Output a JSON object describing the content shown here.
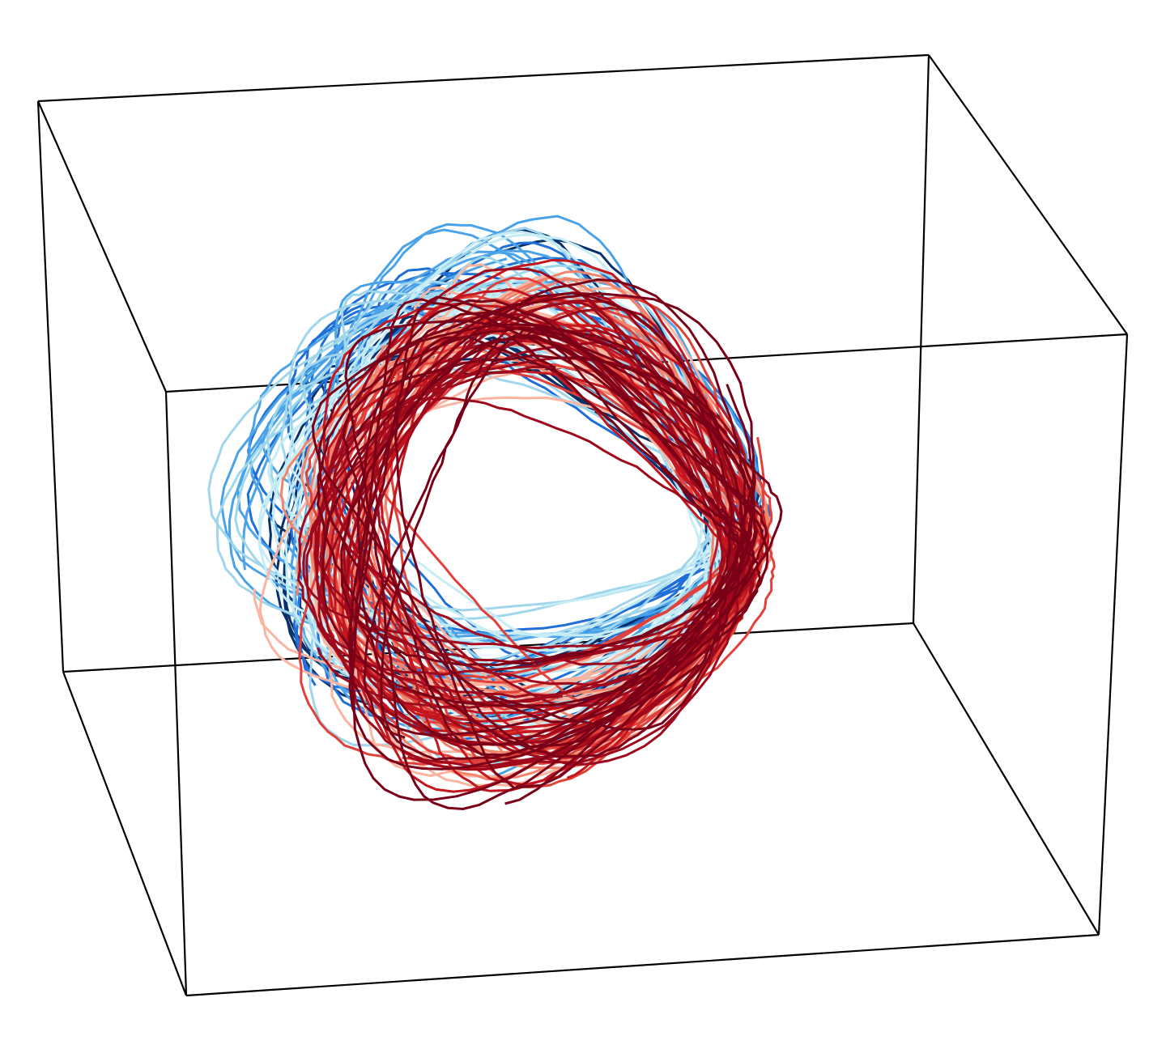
{
  "chart_data": {
    "type": "line3d",
    "title": "",
    "xlabel": "",
    "ylabel": "",
    "zlabel": "",
    "grid": false,
    "legend": "none",
    "box": true,
    "colormap": [
      "#08306b",
      "#1f6fd6",
      "#4aa3e8",
      "#9fd6ec",
      "#c6ecf5",
      "#fbb4a0",
      "#f4836c",
      "#e0413a",
      "#c3161f",
      "#9e0a1c",
      "#7a0018"
    ],
    "series": [
      {
        "color": "#08306b"
      },
      {
        "color": "#1f6fd6"
      },
      {
        "color": "#4aa3e8"
      },
      {
        "color": "#9fd6ec"
      },
      {
        "color": "#c6ecf5"
      },
      {
        "color": "#fbb4a0"
      },
      {
        "color": "#f4836c"
      },
      {
        "color": "#e0413a"
      },
      {
        "color": "#c3161f"
      },
      {
        "color": "#9e0a1c"
      },
      {
        "color": "#7a0018"
      }
    ]
  }
}
